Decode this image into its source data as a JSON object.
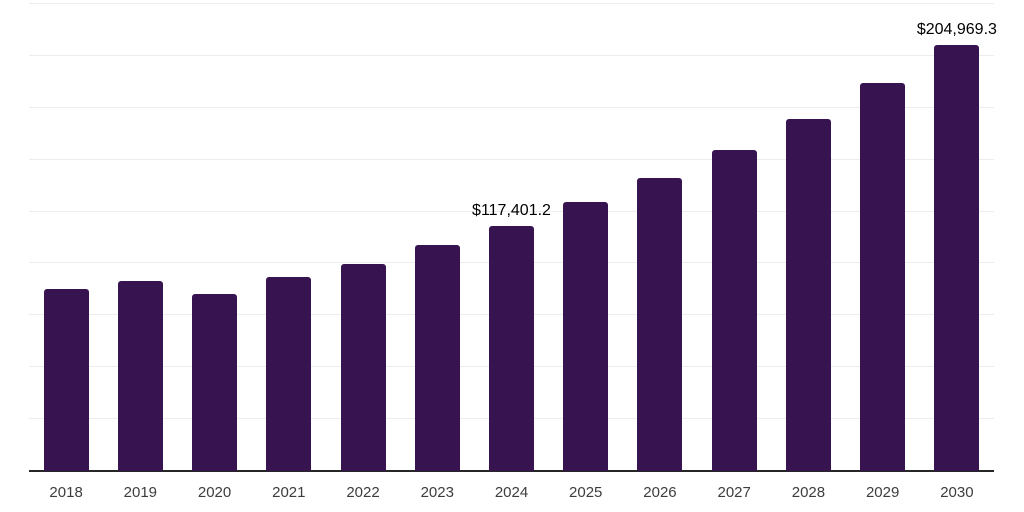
{
  "chart_data": {
    "type": "bar",
    "title": "",
    "xlabel": "",
    "ylabel": "",
    "categories": [
      "2018",
      "2019",
      "2020",
      "2021",
      "2022",
      "2023",
      "2024",
      "2025",
      "2026",
      "2027",
      "2028",
      "2029",
      "2030"
    ],
    "values": [
      87000,
      91000,
      84700,
      93000,
      99100,
      108400,
      117401.2,
      128900,
      140700,
      154400,
      169100,
      186500,
      204969.3
    ],
    "data_labels": {
      "2024": "$117,401.2",
      "2030": "$204,969.3"
    },
    "ylim": [
      0,
      225000
    ],
    "gridline_interval": 25000,
    "grid": true,
    "legend": false,
    "colors": {
      "bar": "#371450",
      "axis_line": "#262626",
      "gridline": "#ededed",
      "tick_label": "#3d3d3d",
      "data_label": "#000000",
      "background": "#ffffff"
    }
  }
}
